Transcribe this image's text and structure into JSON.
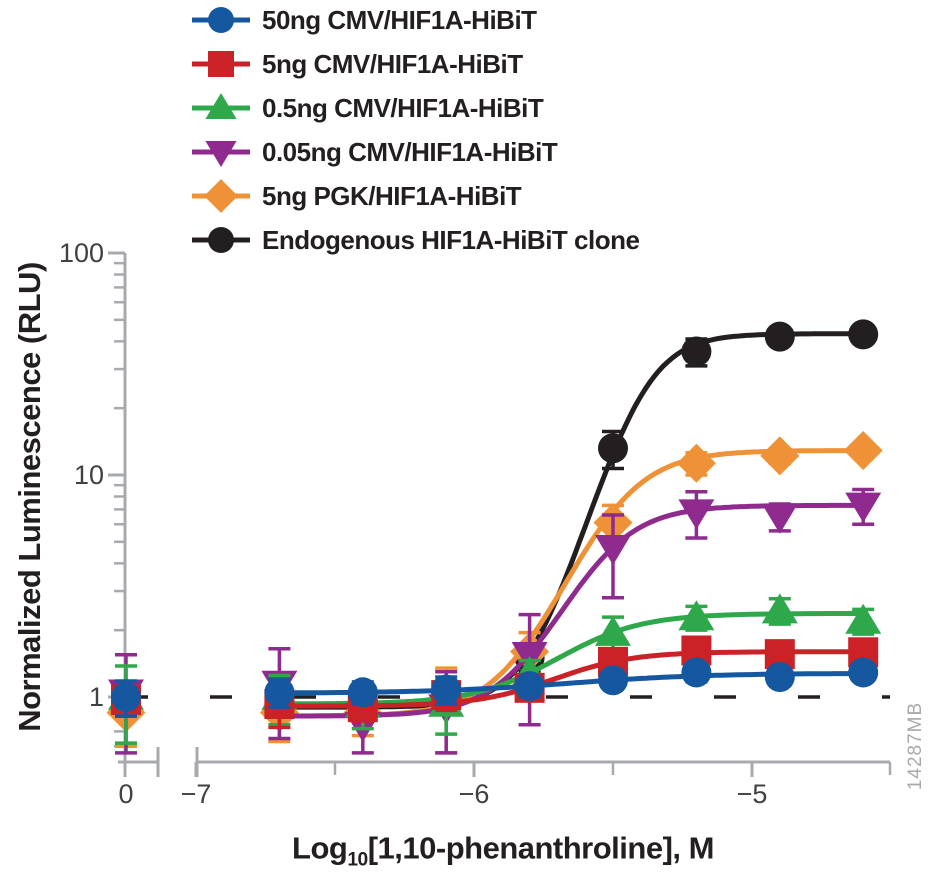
{
  "figure": {
    "background": "#ffffff"
  },
  "watermark": {
    "text": "14287MB",
    "color": "#a7a9ac"
  },
  "axes": {
    "y": {
      "label": "Normalized Luminescence (RLU)",
      "scale": "log",
      "ticks": [
        {
          "value": 100,
          "label": "100"
        },
        {
          "value": 10,
          "label": "10"
        },
        {
          "value": 1,
          "label": "1"
        }
      ],
      "minor_tick_values": [
        90,
        80,
        70,
        60,
        50,
        40,
        30,
        20,
        9,
        8,
        7,
        6,
        5,
        4,
        3,
        2,
        0.9,
        0.8,
        0.7,
        0.6
      ],
      "axis_color": "#a7a9ac",
      "tick_label_color": "#414042"
    },
    "x": {
      "label_prefix": "Log",
      "label_sub": "10",
      "label_suffix": "[1,10-phenanthroline], M",
      "ticks": [
        {
          "label": "0",
          "type": "zero"
        },
        {
          "label": "−7",
          "log": -7
        },
        {
          "label": "−6",
          "log": -6
        },
        {
          "label": "−5",
          "log": -5
        }
      ],
      "minor_tick_logs": [
        -6.5,
        -5.5,
        -4.5
      ],
      "axis_break": true,
      "axis_color": "#a7a9ac",
      "tick_label_color": "#414042"
    }
  },
  "chart_data": {
    "type": "line",
    "title": "",
    "xlabel": "Log10[1,10-phenanthroline], M",
    "ylabel": "Normalized Luminescence (RLU)",
    "y_scale": "log",
    "ylim": [
      0.55,
      100
    ],
    "xlim_log": [
      -7,
      -4.5
    ],
    "zero_point_label": "0",
    "reference_line_y": 1,
    "reference_line_style": "dashed",
    "reference_line_color": "#231f20",
    "legend_position": "top-left",
    "grid": false,
    "x_log10": [
      -6.7,
      -6.4,
      -6.1,
      -5.8,
      -5.5,
      -5.2,
      -4.9,
      -4.6
    ],
    "series": [
      {
        "key": "cmv50",
        "name": "50ng CMV/HIF1A-HiBiT",
        "color": "#1558a0",
        "marker": "circle",
        "zero_value": 1.0,
        "zero_err": 0.18,
        "values": [
          1.05,
          1.05,
          1.08,
          1.12,
          1.19,
          1.29,
          1.23,
          1.29
        ],
        "err": [
          0.15,
          0.12,
          0.15,
          0.12,
          0.1,
          0.12,
          0.08,
          0.08
        ],
        "fit": {
          "bottom": 1.04,
          "top": 1.28,
          "log_ec50": -5.63,
          "hill": 1.75
        }
      },
      {
        "key": "cmv5",
        "name": "5ng CMV/HIF1A-HiBiT",
        "color": "#cb2228",
        "marker": "square",
        "zero_value": 0.97,
        "zero_err": 0.15,
        "values": [
          0.93,
          0.9,
          1.02,
          1.1,
          1.44,
          1.62,
          1.56,
          1.59
        ],
        "err": [
          0.2,
          0.12,
          0.15,
          0.12,
          0.15,
          0.1,
          0.08,
          0.08
        ],
        "fit": {
          "bottom": 0.91,
          "top": 1.6,
          "log_ec50": -5.67,
          "hill": 3.1
        }
      },
      {
        "key": "cmv05",
        "name": "0.5ng CMV/HIF1A-HiBiT",
        "color": "#2fa84c",
        "marker": "triangle-up",
        "zero_value": 1.0,
        "zero_err": 0.38,
        "values": [
          1.0,
          0.92,
          0.93,
          1.28,
          1.94,
          2.28,
          2.45,
          2.2
        ],
        "err": [
          0.25,
          0.2,
          0.25,
          0.18,
          0.35,
          0.28,
          0.32,
          0.28
        ],
        "fit": {
          "bottom": 0.93,
          "top": 2.38,
          "log_ec50": -5.63,
          "hill": 2.9
        }
      },
      {
        "key": "cmv005",
        "name": "0.05ng CMV/HIF1A-HiBiT",
        "color": "#8f2a8f",
        "marker": "triangle-down",
        "zero_value": 1.05,
        "zero_err": 0.5,
        "values": [
          1.15,
          0.75,
          0.9,
          1.55,
          4.7,
          6.8,
          6.5,
          7.3
        ],
        "err": [
          0.5,
          0.35,
          0.4,
          0.8,
          1.9,
          1.6,
          0.9,
          1.3
        ],
        "fit": {
          "bottom": 0.82,
          "top": 7.3,
          "log_ec50": -5.55,
          "hill": 3.55
        }
      },
      {
        "key": "pgk5",
        "name": "5ng PGK/HIF1A-HiBiT",
        "color": "#ef9136",
        "marker": "diamond",
        "zero_value": 0.85,
        "zero_err": 0.25,
        "values": [
          0.85,
          0.85,
          0.95,
          1.6,
          6.1,
          11.3,
          12.2,
          12.9
        ],
        "err": [
          0.22,
          0.18,
          0.4,
          0.35,
          1.2,
          1.3,
          0.9,
          0.9
        ],
        "fit": {
          "bottom": 0.82,
          "top": 12.9,
          "log_ec50": -5.5,
          "hill": 3.5
        }
      },
      {
        "key": "endog",
        "name": "Endogenous HIF1A-HiBiT clone",
        "color": "#231f20",
        "marker": "circle",
        "zero_value": 0.95,
        "zero_err": 0.12,
        "values": [
          0.95,
          0.88,
          1.05,
          1.5,
          13.2,
          36.0,
          42.0,
          43.0
        ],
        "err": [
          0.12,
          0.1,
          0.12,
          0.2,
          2.5,
          5.0,
          2.0,
          2.0
        ],
        "fit": {
          "bottom": 0.9,
          "top": 43.3,
          "log_ec50": -5.405,
          "hill": 4.5
        }
      }
    ]
  }
}
